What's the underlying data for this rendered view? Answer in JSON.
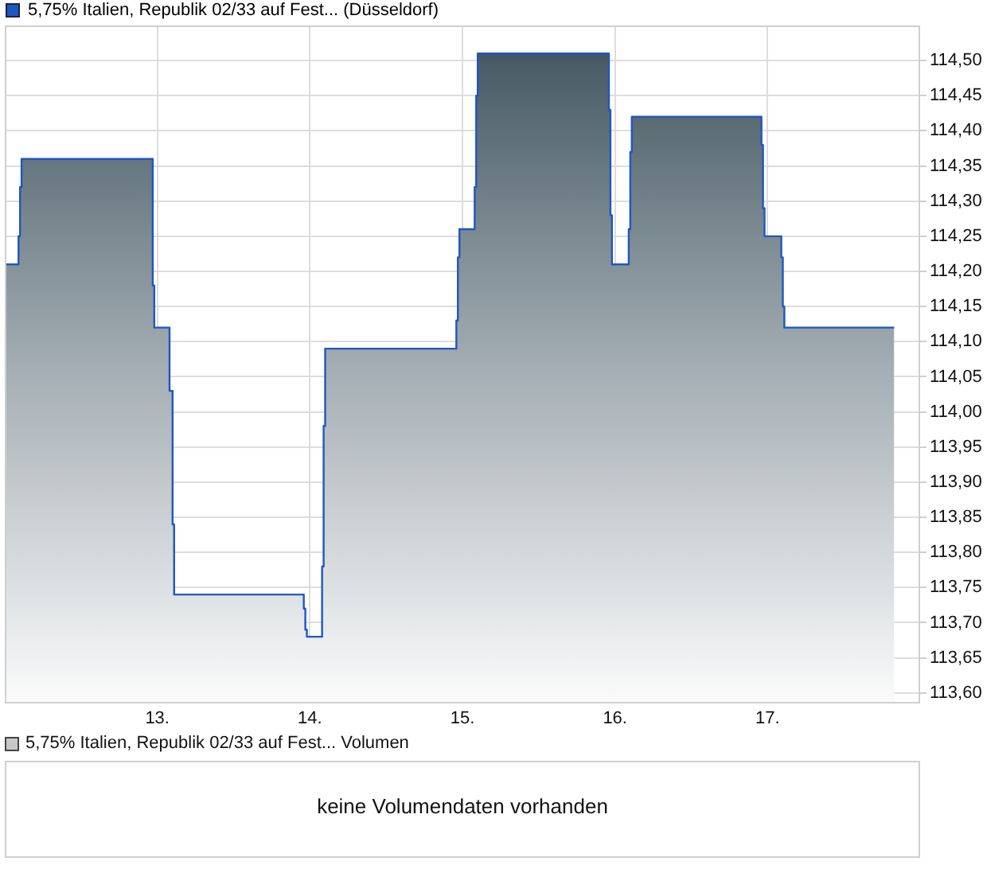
{
  "chart_data": [
    {
      "type": "area",
      "x": [
        12.0,
        12.09,
        12.09,
        12.1,
        12.1,
        12.11,
        12.11,
        12.97,
        12.97,
        12.98,
        12.98,
        13.08,
        13.08,
        13.1,
        13.1,
        13.11,
        13.11,
        13.96,
        13.96,
        13.97,
        13.97,
        13.98,
        13.98,
        14.08,
        14.08,
        14.09,
        14.09,
        14.1,
        14.1,
        14.96,
        14.96,
        14.97,
        14.97,
        14.98,
        14.98,
        15.08,
        15.08,
        15.09,
        15.09,
        15.1,
        15.1,
        15.96,
        15.96,
        15.97,
        15.97,
        15.98,
        15.98,
        16.09,
        16.09,
        16.1,
        16.1,
        16.11,
        16.11,
        16.96,
        16.96,
        16.97,
        16.97,
        16.98,
        16.98,
        17.09,
        17.09,
        17.1,
        17.1,
        17.11,
        17.11,
        17.83
      ],
      "series": [
        {
          "name": "5,75% Italien, Republik 02/33 auf Fest... (Düsseldorf)",
          "color": "#1f57c3",
          "values": [
            114.21,
            114.21,
            114.25,
            114.25,
            114.32,
            114.32,
            114.36,
            114.36,
            114.18,
            114.18,
            114.12,
            114.12,
            114.03,
            114.03,
            113.84,
            113.84,
            113.74,
            113.74,
            113.72,
            113.72,
            113.69,
            113.69,
            113.68,
            113.68,
            113.78,
            113.78,
            113.98,
            113.98,
            114.09,
            114.09,
            114.13,
            114.13,
            114.22,
            114.22,
            114.26,
            114.26,
            114.32,
            114.32,
            114.45,
            114.45,
            114.51,
            114.51,
            114.43,
            114.43,
            114.28,
            114.28,
            114.21,
            114.21,
            114.26,
            114.26,
            114.37,
            114.37,
            114.42,
            114.42,
            114.38,
            114.38,
            114.29,
            114.29,
            114.25,
            114.25,
            114.22,
            114.22,
            114.15,
            114.15,
            114.12,
            114.12
          ]
        }
      ],
      "xlim": [
        12,
        18
      ],
      "xticks": [
        {
          "value": 13,
          "label": "13."
        },
        {
          "value": 14,
          "label": "14."
        },
        {
          "value": 15,
          "label": "15."
        },
        {
          "value": 16,
          "label": "16."
        },
        {
          "value": 17,
          "label": "17."
        }
      ],
      "ylim": [
        113.585,
        114.55
      ],
      "yticks": [
        {
          "value": 113.6,
          "label": "113,60"
        },
        {
          "value": 113.65,
          "label": "113,65"
        },
        {
          "value": 113.7,
          "label": "113,70"
        },
        {
          "value": 113.75,
          "label": "113,75"
        },
        {
          "value": 113.8,
          "label": "113,80"
        },
        {
          "value": 113.85,
          "label": "113,85"
        },
        {
          "value": 113.9,
          "label": "113,90"
        },
        {
          "value": 113.95,
          "label": "113,95"
        },
        {
          "value": 114.0,
          "label": "114,00"
        },
        {
          "value": 114.05,
          "label": "114,05"
        },
        {
          "value": 114.1,
          "label": "114,10"
        },
        {
          "value": 114.15,
          "label": "114,15"
        },
        {
          "value": 114.2,
          "label": "114,20"
        },
        {
          "value": 114.25,
          "label": "114,25"
        },
        {
          "value": 114.3,
          "label": "114,30"
        },
        {
          "value": 114.35,
          "label": "114,35"
        },
        {
          "value": 114.4,
          "label": "114,40"
        },
        {
          "value": 114.45,
          "label": "114,45"
        },
        {
          "value": 114.5,
          "label": "114,50"
        }
      ],
      "grid": true,
      "legend": "top left"
    },
    {
      "type": "other",
      "title": "5,75% Italien, Republik 02/33 auf Fest... Volumen",
      "annotations": [
        "keine Volumendaten vorhanden"
      ]
    }
  ]
}
